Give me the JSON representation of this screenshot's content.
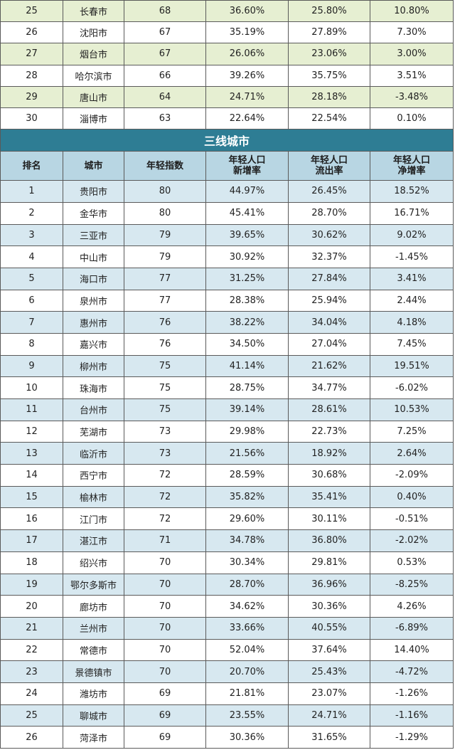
{
  "top_rows": [
    {
      "rank": "25",
      "city": "长春市",
      "index": "68",
      "new_rate": "36.60%",
      "out_rate": "25.80%",
      "net_rate": "10.80%"
    },
    {
      "rank": "26",
      "city": "沈阳市",
      "index": "67",
      "new_rate": "35.19%",
      "out_rate": "27.89%",
      "net_rate": "7.30%"
    },
    {
      "rank": "27",
      "city": "烟台市",
      "index": "67",
      "new_rate": "26.06%",
      "out_rate": "23.06%",
      "net_rate": "3.00%"
    },
    {
      "rank": "28",
      "city": "哈尔滨市",
      "index": "66",
      "new_rate": "39.26%",
      "out_rate": "35.75%",
      "net_rate": "3.51%"
    },
    {
      "rank": "29",
      "city": "唐山市",
      "index": "64",
      "new_rate": "24.71%",
      "out_rate": "28.18%",
      "net_rate": "-3.48%"
    },
    {
      "rank": "30",
      "city": "淄博市",
      "index": "63",
      "new_rate": "22.64%",
      "out_rate": "22.54%",
      "net_rate": "0.10%"
    }
  ],
  "section_title": "三线城市",
  "headers": {
    "rank": "排名",
    "city": "城市",
    "index": "年轻指数",
    "new_rate_l1": "年轻人口",
    "new_rate_l2": "新增率",
    "out_rate_l1": "年轻人口",
    "out_rate_l2": "流出率",
    "net_rate_l1": "年轻人口",
    "net_rate_l2": "净增率"
  },
  "rows": [
    {
      "rank": "1",
      "city": "贵阳市",
      "index": "80",
      "new_rate": "44.97%",
      "out_rate": "26.45%",
      "net_rate": "18.52%"
    },
    {
      "rank": "2",
      "city": "金华市",
      "index": "80",
      "new_rate": "45.41%",
      "out_rate": "28.70%",
      "net_rate": "16.71%"
    },
    {
      "rank": "3",
      "city": "三亚市",
      "index": "79",
      "new_rate": "39.65%",
      "out_rate": "30.62%",
      "net_rate": "9.02%"
    },
    {
      "rank": "4",
      "city": "中山市",
      "index": "79",
      "new_rate": "30.92%",
      "out_rate": "32.37%",
      "net_rate": "-1.45%"
    },
    {
      "rank": "5",
      "city": "海口市",
      "index": "77",
      "new_rate": "31.25%",
      "out_rate": "27.84%",
      "net_rate": "3.41%"
    },
    {
      "rank": "6",
      "city": "泉州市",
      "index": "77",
      "new_rate": "28.38%",
      "out_rate": "25.94%",
      "net_rate": "2.44%"
    },
    {
      "rank": "7",
      "city": "惠州市",
      "index": "76",
      "new_rate": "38.22%",
      "out_rate": "34.04%",
      "net_rate": "4.18%"
    },
    {
      "rank": "8",
      "city": "嘉兴市",
      "index": "76",
      "new_rate": "34.50%",
      "out_rate": "27.04%",
      "net_rate": "7.45%"
    },
    {
      "rank": "9",
      "city": "柳州市",
      "index": "75",
      "new_rate": "41.14%",
      "out_rate": "21.62%",
      "net_rate": "19.51%"
    },
    {
      "rank": "10",
      "city": "珠海市",
      "index": "75",
      "new_rate": "28.75%",
      "out_rate": "34.77%",
      "net_rate": "-6.02%"
    },
    {
      "rank": "11",
      "city": "台州市",
      "index": "75",
      "new_rate": "39.14%",
      "out_rate": "28.61%",
      "net_rate": "10.53%"
    },
    {
      "rank": "12",
      "city": "芜湖市",
      "index": "73",
      "new_rate": "29.98%",
      "out_rate": "22.73%",
      "net_rate": "7.25%"
    },
    {
      "rank": "13",
      "city": "临沂市",
      "index": "73",
      "new_rate": "21.56%",
      "out_rate": "18.92%",
      "net_rate": "2.64%"
    },
    {
      "rank": "14",
      "city": "西宁市",
      "index": "72",
      "new_rate": "28.59%",
      "out_rate": "30.68%",
      "net_rate": "-2.09%"
    },
    {
      "rank": "15",
      "city": "榆林市",
      "index": "72",
      "new_rate": "35.82%",
      "out_rate": "35.41%",
      "net_rate": "0.40%"
    },
    {
      "rank": "16",
      "city": "江门市",
      "index": "72",
      "new_rate": "29.60%",
      "out_rate": "30.11%",
      "net_rate": "-0.51%"
    },
    {
      "rank": "17",
      "city": "湛江市",
      "index": "71",
      "new_rate": "34.78%",
      "out_rate": "36.80%",
      "net_rate": "-2.02%"
    },
    {
      "rank": "18",
      "city": "绍兴市",
      "index": "70",
      "new_rate": "30.34%",
      "out_rate": "29.81%",
      "net_rate": "0.53%"
    },
    {
      "rank": "19",
      "city": "鄂尔多斯市",
      "index": "70",
      "new_rate": "28.70%",
      "out_rate": "36.96%",
      "net_rate": "-8.25%"
    },
    {
      "rank": "20",
      "city": "廊坊市",
      "index": "70",
      "new_rate": "34.62%",
      "out_rate": "30.36%",
      "net_rate": "4.26%"
    },
    {
      "rank": "21",
      "city": "兰州市",
      "index": "70",
      "new_rate": "33.66%",
      "out_rate": "40.55%",
      "net_rate": "-6.89%"
    },
    {
      "rank": "22",
      "city": "常德市",
      "index": "70",
      "new_rate": "52.04%",
      "out_rate": "37.64%",
      "net_rate": "14.40%"
    },
    {
      "rank": "23",
      "city": "景德镇市",
      "index": "70",
      "new_rate": "20.70%",
      "out_rate": "25.43%",
      "net_rate": "-4.72%"
    },
    {
      "rank": "24",
      "city": "潍坊市",
      "index": "69",
      "new_rate": "21.81%",
      "out_rate": "23.07%",
      "net_rate": "-1.26%"
    },
    {
      "rank": "25",
      "city": "聊城市",
      "index": "69",
      "new_rate": "23.55%",
      "out_rate": "24.71%",
      "net_rate": "-1.16%"
    },
    {
      "rank": "26",
      "city": "菏泽市",
      "index": "69",
      "new_rate": "30.36%",
      "out_rate": "31.65%",
      "net_rate": "-1.29%"
    }
  ],
  "colors": {
    "top_odd_row": "#e6efd2",
    "top_even_row": "#ffffff",
    "section_title_bg": "#2e7d94",
    "header_bg": "#b8d6e3",
    "odd_row": "#d7e8f0",
    "even_row": "#ffffff",
    "border": "#5a5a5a"
  }
}
